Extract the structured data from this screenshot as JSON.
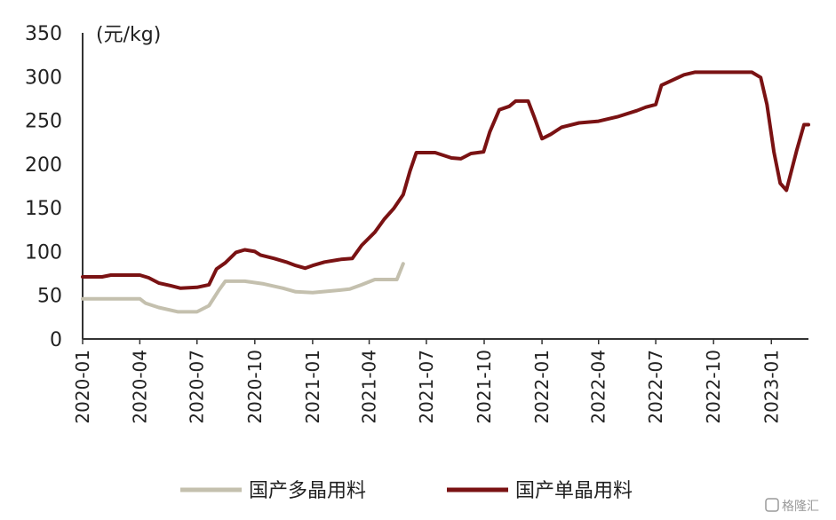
{
  "chart_data": {
    "type": "line",
    "ylabel": "(元/kg)",
    "ylim": [
      0,
      350
    ],
    "yticks": [
      "0",
      "50",
      "100",
      "150",
      "200",
      "250",
      "300",
      "350"
    ],
    "x_range": [
      "2020-01",
      "2023-03"
    ],
    "xticks": [
      "2020-01",
      "2020-04",
      "2020-07",
      "2020-10",
      "2021-01",
      "2021-04",
      "2021-07",
      "2021-10",
      "2022-01",
      "2022-04",
      "2022-07",
      "2022-10",
      "2023-01"
    ],
    "legend_position": "bottom",
    "series": [
      {
        "name": "国产多晶用料",
        "color": "#c4c0ae",
        "points": [
          [
            "2020-01-01",
            46
          ],
          [
            "2020-04-01",
            46
          ],
          [
            "2020-04-10",
            41
          ],
          [
            "2020-05-01",
            36
          ],
          [
            "2020-06-01",
            31
          ],
          [
            "2020-07-01",
            31
          ],
          [
            "2020-07-20",
            38
          ],
          [
            "2020-08-05",
            56
          ],
          [
            "2020-08-15",
            66
          ],
          [
            "2020-09-15",
            66
          ],
          [
            "2020-10-15",
            63
          ],
          [
            "2020-11-15",
            58
          ],
          [
            "2020-12-05",
            54
          ],
          [
            "2021-01-01",
            53
          ],
          [
            "2021-02-01",
            55
          ],
          [
            "2021-03-01",
            57
          ],
          [
            "2021-03-20",
            62
          ],
          [
            "2021-04-10",
            68
          ],
          [
            "2021-05-15",
            68
          ],
          [
            "2021-05-25",
            86
          ]
        ]
      },
      {
        "name": "国产单晶用料",
        "color": "#7a1213",
        "points": [
          [
            "2020-01-01",
            71
          ],
          [
            "2020-02-01",
            71
          ],
          [
            "2020-02-15",
            73
          ],
          [
            "2020-04-01",
            73
          ],
          [
            "2020-04-15",
            70
          ],
          [
            "2020-05-01",
            64
          ],
          [
            "2020-05-20",
            61
          ],
          [
            "2020-06-05",
            58
          ],
          [
            "2020-07-01",
            59
          ],
          [
            "2020-07-20",
            62
          ],
          [
            "2020-08-01",
            80
          ],
          [
            "2020-08-15",
            87
          ],
          [
            "2020-09-01",
            99
          ],
          [
            "2020-09-15",
            102
          ],
          [
            "2020-10-01",
            100
          ],
          [
            "2020-10-10",
            96
          ],
          [
            "2020-11-01",
            92
          ],
          [
            "2020-11-20",
            88
          ],
          [
            "2020-12-05",
            84
          ],
          [
            "2020-12-20",
            81
          ],
          [
            "2021-01-01",
            84
          ],
          [
            "2021-01-20",
            88
          ],
          [
            "2021-02-15",
            91
          ],
          [
            "2021-03-05",
            92
          ],
          [
            "2021-03-20",
            107
          ],
          [
            "2021-04-10",
            122
          ],
          [
            "2021-04-25",
            137
          ],
          [
            "2021-05-10",
            149
          ],
          [
            "2021-05-25",
            165
          ],
          [
            "2021-06-05",
            192
          ],
          [
            "2021-06-15",
            213
          ],
          [
            "2021-07-15",
            213
          ],
          [
            "2021-08-10",
            207
          ],
          [
            "2021-08-25",
            206
          ],
          [
            "2021-09-10",
            212
          ],
          [
            "2021-09-30",
            214
          ],
          [
            "2021-10-10",
            237
          ],
          [
            "2021-10-25",
            262
          ],
          [
            "2021-11-10",
            266
          ],
          [
            "2021-11-20",
            272
          ],
          [
            "2021-12-10",
            272
          ],
          [
            "2021-12-20",
            253
          ],
          [
            "2022-01-01",
            229
          ],
          [
            "2022-01-15",
            234
          ],
          [
            "2022-02-01",
            242
          ],
          [
            "2022-03-01",
            247
          ],
          [
            "2022-04-01",
            249
          ],
          [
            "2022-05-01",
            254
          ],
          [
            "2022-06-01",
            261
          ],
          [
            "2022-06-15",
            265
          ],
          [
            "2022-07-01",
            268
          ],
          [
            "2022-07-10",
            290
          ],
          [
            "2022-07-25",
            295
          ],
          [
            "2022-08-15",
            302
          ],
          [
            "2022-09-01",
            305
          ],
          [
            "2022-12-01",
            305
          ],
          [
            "2022-12-15",
            299
          ],
          [
            "2022-12-25",
            268
          ],
          [
            "2023-01-05",
            214
          ],
          [
            "2023-01-15",
            178
          ],
          [
            "2023-01-25",
            170
          ],
          [
            "2023-02-10",
            215
          ],
          [
            "2023-02-22",
            245
          ],
          [
            "2023-03-01",
            245
          ]
        ]
      }
    ]
  },
  "watermark": "格隆汇"
}
